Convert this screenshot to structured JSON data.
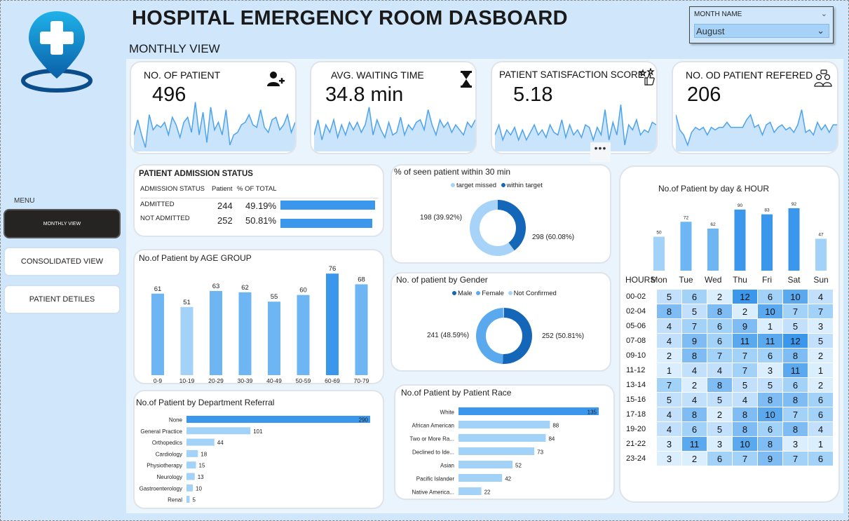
{
  "header": {
    "title": "HOSPITAL EMERGENCY ROOM DASBOARD",
    "subtitle": "MONTHLY VIEW"
  },
  "slicer": {
    "label": "MONTH NAME",
    "value": "August"
  },
  "menu": {
    "label": "MENU",
    "items": [
      {
        "label": "MONTHLY VIEW"
      },
      {
        "label": "CONSOLIDATED VIEW"
      },
      {
        "label": "PATIENT DETILES"
      }
    ]
  },
  "kpis": [
    {
      "label": "NO. OF PATIENT",
      "value": "496",
      "icon": "add-user-icon",
      "spark": [
        0.3,
        0.6,
        0.3,
        0.05,
        0.7,
        0.4,
        0.5,
        0.45,
        0.55,
        0.3,
        0.65,
        0.5,
        0.25,
        0.55,
        0.65,
        0.35,
        0.95,
        0.3,
        0.75,
        0.15,
        0.85,
        0.4,
        0.55,
        0.3,
        0.8,
        0.1,
        0.3,
        0.35,
        0.5,
        0.55,
        0.7,
        0.5,
        0.45,
        0.8,
        0.45,
        0.35,
        0.6,
        0.65,
        0.4,
        0.5,
        0.7,
        0.35,
        0.55
      ]
    },
    {
      "label": "AVG. WAITING TIME",
      "value": "34.8 min",
      "icon": "hourglass-icon",
      "spark": [
        0.3,
        0.6,
        0.2,
        0.5,
        0.35,
        0.6,
        0.25,
        0.5,
        0.3,
        0.55,
        0.4,
        0.55,
        0.35,
        0.5,
        0.85,
        0.3,
        0.6,
        0.4,
        0.25,
        0.55,
        0.3,
        0.35,
        0.65,
        0.3,
        0.5,
        0.4,
        0.55,
        0.6,
        0.4,
        0.8,
        0.5,
        0.3,
        0.6,
        0.45,
        0.55,
        0.35,
        0.5,
        0.4,
        0.3,
        0.55,
        0.45,
        0.6
      ]
    },
    {
      "label": "PATIENT SATISFACTION SCORE",
      "value": "5.18",
      "icon": "satisfaction-icon",
      "spark": [
        0.3,
        0.5,
        0.2,
        0.4,
        0.3,
        0.45,
        0.2,
        0.4,
        0.2,
        0.35,
        0.5,
        0.3,
        0.4,
        0.25,
        0.5,
        0.35,
        0.3,
        0.6,
        0.25,
        0.5,
        0.3,
        0.4,
        0.25,
        0.5,
        0.45,
        0.2,
        0.45,
        0.3,
        0.8,
        0.2,
        0.55,
        0.3,
        0.9,
        0.1,
        0.5,
        0.4,
        0.6,
        0.3,
        0.4,
        0.35,
        0.55,
        0.5
      ]
    },
    {
      "label": "NO. OD PATIENT REFERED",
      "value": "206",
      "icon": "referral-icon",
      "spark": [
        0.7,
        0.4,
        0.3,
        0.1,
        0.35,
        0.45,
        0.4,
        0.45,
        0.3,
        0.45,
        0.4,
        0.45,
        0.45,
        0.55,
        0.45,
        0.45,
        0.45,
        0.45,
        0.6,
        0.7,
        0.45,
        0.5,
        0.3,
        0.5,
        0.55,
        0.35,
        0.45,
        0.5,
        0.4,
        0.45,
        0.35,
        0.5,
        0.8,
        0.35,
        0.4,
        0.3,
        0.55,
        0.4,
        0.5,
        0.35,
        0.5,
        0.5
      ]
    }
  ],
  "admission": {
    "title": "PATIENT ADMISSION STATUS",
    "headers": [
      "ADMISSION STATUS",
      "Patient",
      "% OF TOTAL"
    ],
    "rows": [
      {
        "status": "ADMITTED",
        "patient": "244",
        "pct": "49.19%",
        "frac": 0.9919
      },
      {
        "status": "NOT ADMITTED",
        "patient": "252",
        "pct": "50.81%",
        "frac": 0.96
      }
    ]
  },
  "seen30": {
    "title": "% of seen patient within 30 min",
    "legend": [
      "target missed",
      "within target"
    ],
    "slices": [
      {
        "name": "target missed",
        "value": 198,
        "label": "198 (39.92%)",
        "color": "#1467b8"
      },
      {
        "name": "within target",
        "value": 298,
        "label": "298 (60.08%)",
        "color": "#a8d3f8"
      }
    ]
  },
  "gender": {
    "title": "No. of patient by Gender",
    "legend": [
      "Male",
      "Female",
      "Not Confirmed"
    ],
    "legend_colors": [
      "#1467b8",
      "#5aa9ee",
      "#a8d3f8"
    ],
    "slices": [
      {
        "name": "Male",
        "value": 252,
        "label": "252 (50.81%)",
        "color": "#1467b8"
      },
      {
        "name": "Female",
        "value": 241,
        "label": "241 (48.59%)",
        "color": "#5aa9ee"
      },
      {
        "name": "Not Confirmed",
        "value": 3,
        "label": "",
        "color": "#a8d3f8"
      }
    ]
  },
  "chart_data": [
    {
      "type": "bar",
      "title": "No.of Patient by AGE GROUP",
      "categories": [
        "0-9",
        "10-19",
        "20-29",
        "30-39",
        "40-49",
        "50-59",
        "60-69",
        "70-79"
      ],
      "values": [
        61,
        51,
        63,
        62,
        55,
        60,
        76,
        68
      ],
      "ylim": [
        0,
        80
      ]
    },
    {
      "type": "bar",
      "orientation": "horizontal",
      "title": "No.of Patient by Department Referral",
      "categories": [
        "None",
        "General Practice",
        "Orthopedics",
        "Cardiology",
        "Physiotherapy",
        "Neurology",
        "Gastroenterology",
        "Renal"
      ],
      "values": [
        290,
        101,
        44,
        18,
        15,
        13,
        10,
        5
      ],
      "xlim": [
        0,
        290
      ]
    },
    {
      "type": "bar",
      "orientation": "horizontal",
      "title": "No.of Patient by Patient Race",
      "categories": [
        "White",
        "African American",
        "Two or More Ra...",
        "Declined to Ide...",
        "Asian",
        "Pacific Islander",
        "Native America..."
      ],
      "values": [
        135,
        88,
        84,
        73,
        52,
        42,
        22
      ],
      "xlim": [
        0,
        135
      ]
    },
    {
      "type": "bar",
      "title": "No.of Patient by day & HOUR",
      "categories": [
        "Mon",
        "Tue",
        "Wed",
        "Thu",
        "Fri",
        "Sat",
        "Sun"
      ],
      "values": [
        50,
        72,
        62,
        90,
        83,
        92,
        47
      ],
      "ylim": [
        0,
        95
      ]
    },
    {
      "type": "heatmap",
      "title": "No.of Patient by day & HOUR",
      "row_header": "HOURS",
      "columns": [
        "Mon",
        "Tue",
        "Wed",
        "Thu",
        "Fri",
        "Sat",
        "Sun"
      ],
      "rows": [
        "00-02",
        "02-04",
        "05-06",
        "07-08",
        "09-10",
        "11-12",
        "13-14",
        "15-16",
        "17-18",
        "19-20",
        "21-22",
        "23-24"
      ],
      "values": [
        [
          5,
          6,
          2,
          12,
          6,
          10,
          4
        ],
        [
          8,
          5,
          8,
          2,
          10,
          7,
          7
        ],
        [
          4,
          7,
          6,
          9,
          1,
          5,
          3
        ],
        [
          4,
          9,
          6,
          11,
          11,
          12,
          5
        ],
        [
          2,
          8,
          7,
          7,
          6,
          8,
          2
        ],
        [
          1,
          4,
          4,
          7,
          3,
          11,
          1
        ],
        [
          7,
          2,
          8,
          5,
          5,
          6,
          2
        ],
        [
          5,
          4,
          5,
          4,
          8,
          8,
          6
        ],
        [
          4,
          8,
          2,
          8,
          10,
          7,
          6
        ],
        [
          4,
          6,
          5,
          8,
          6,
          8,
          4
        ],
        [
          3,
          11,
          3,
          10,
          8,
          3,
          1
        ],
        [
          3,
          2,
          6,
          7,
          9,
          7,
          6
        ]
      ]
    }
  ],
  "colors": {
    "bar_light": "#9fcff7",
    "bar_mid": "#6eb6f3",
    "bar_dark": "#3b97ec",
    "accent": "#0a5fa8"
  }
}
